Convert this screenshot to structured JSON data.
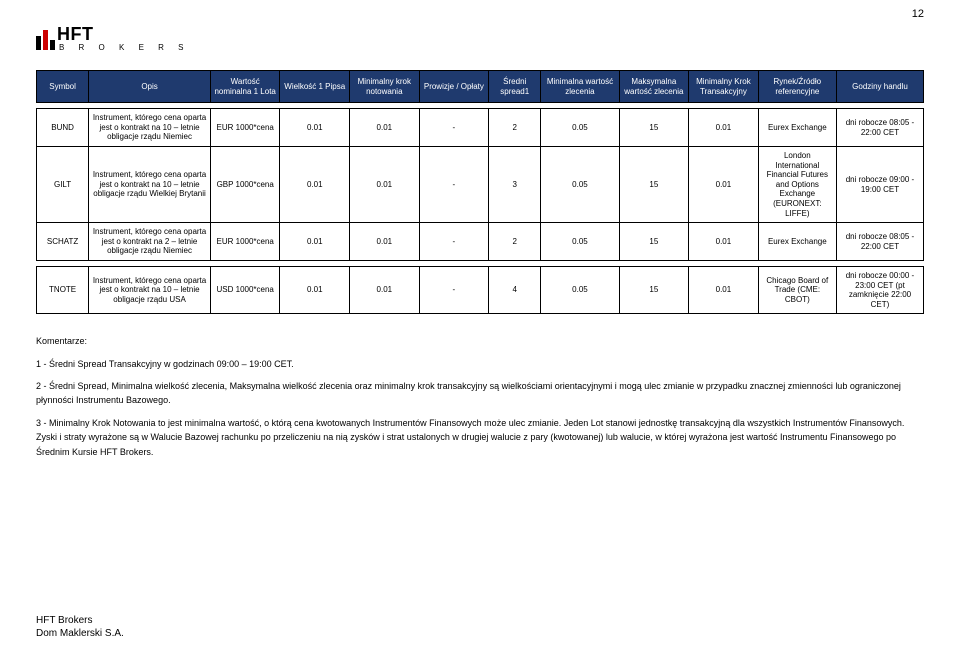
{
  "page_number": "12",
  "logo": {
    "text": "HFT",
    "sub": "B R O K E R S"
  },
  "headers": [
    "Symbol",
    "Opis",
    "Wartość nominalna 1 Lota",
    "Wielkość 1 Pipsa",
    "Minimalny krok notowania",
    "Prowizje / Opłaty",
    "Średni spread1",
    "Minimalna wartość zlecenia",
    "Maksymalna wartość zlecenia",
    "Minimalny Krok Transakcyjny",
    "Rynek/Źródło referencyjne",
    "Godziny handlu"
  ],
  "rows": [
    {
      "symbol": "BUND",
      "opis": "Instrument, którego cena oparta jest o kontrakt na 10 – letnie obligacje rządu Niemiec",
      "nominal": "EUR 1000*cena",
      "pipsa": "0.01",
      "step": "0.01",
      "fees": "-",
      "spread": "2",
      "min": "0.05",
      "max": "15",
      "tkrok": "0.01",
      "rynek": "Eurex Exchange",
      "godz": "dni robocze 08:05 - 22:00 CET"
    },
    {
      "symbol": "GILT",
      "opis": "Instrument, którego cena oparta jest o kontrakt na 10 – letnie obligacje rządu Wielkiej Brytanii",
      "nominal": "GBP 1000*cena",
      "pipsa": "0.01",
      "step": "0.01",
      "fees": "-",
      "spread": "3",
      "min": "0.05",
      "max": "15",
      "tkrok": "0.01",
      "rynek": "London International Financial Futures and Options Exchange (EURONEXT: LIFFE)",
      "godz": "dni robocze 09:00 - 19:00 CET"
    },
    {
      "symbol": "SCHATZ",
      "opis": "Instrument, którego cena oparta jest o kontrakt na 2 – letnie obligacje rządu Niemiec",
      "nominal": "EUR 1000*cena",
      "pipsa": "0.01",
      "step": "0.01",
      "fees": "-",
      "spread": "2",
      "min": "0.05",
      "max": "15",
      "tkrok": "0.01",
      "rynek": "Eurex Exchange",
      "godz": "dni robocze 08:05 - 22:00 CET"
    },
    {
      "symbol": "TNOTE",
      "opis": "Instrument, którego cena oparta jest o kontrakt na 10 – letnie obligacje rządu USA",
      "nominal": "USD 1000*cena",
      "pipsa": "0.01",
      "step": "0.01",
      "fees": "-",
      "spread": "4",
      "min": "0.05",
      "max": "15",
      "tkrok": "0.01",
      "rynek": "Chicago Board of Trade (CME: CBOT)",
      "godz": "dni robocze 00:00 - 23:00 CET (pt zamknięcie 22:00 CET)"
    }
  ],
  "comments": {
    "heading": "Komentarze:",
    "p1": "1 - Średni Spread Transakcyjny w godzinach 09:00 – 19:00 CET.",
    "p2": "2 - Średni Spread, Minimalna wielkość zlecenia, Maksymalna wielkość zlecenia oraz minimalny krok transakcyjny są wielkościami orientacyjnymi i mogą ulec zmianie w przypadku znacznej zmienności lub ograniczonej płynności Instrumentu Bazowego.",
    "p3": "3 - Minimalny Krok Notowania to jest minimalna wartość, o którą cena kwotowanych Instrumentów Finansowych może ulec zmianie. Jeden Lot stanowi jednostkę transakcyjną dla wszystkich Instrumentów Finansowych. Zyski i straty wyrażone są w Walucie Bazowej rachunku po przeliczeniu na nią zysków i strat ustalonych w drugiej walucie z pary (kwotowanej) lub walucie, w której wyrażona jest wartość Instrumentu Finansowego po Średnim Kursie HFT Brokers."
  },
  "footer": {
    "line1": "HFT Brokers",
    "line2": "Dom Maklerski S.A."
  },
  "colors": {
    "header_bg": "#1f3a6e",
    "header_fg": "#ffffff",
    "accent": "#c00000"
  }
}
